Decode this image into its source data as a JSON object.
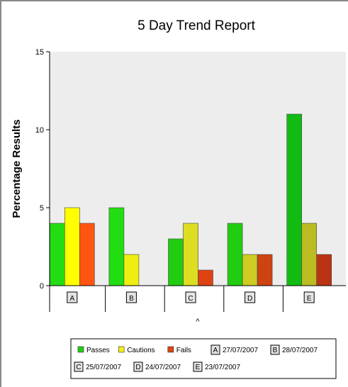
{
  "chart_data": {
    "type": "bar",
    "title": "5 Day Trend Report",
    "ylabel": "Percentage Results",
    "xlabel": "^",
    "ylim": [
      0,
      15
    ],
    "yticks": [
      0,
      5,
      10,
      15
    ],
    "grid": false,
    "legend_position": "bottom",
    "categories": [
      "A",
      "B",
      "C",
      "D",
      "E"
    ],
    "series": [
      {
        "name": "Passes",
        "values": [
          4,
          5,
          3,
          4,
          11
        ]
      },
      {
        "name": "Cautions",
        "values": [
          5,
          2,
          4,
          2,
          4
        ]
      },
      {
        "name": "Fails",
        "values": [
          4,
          0,
          1,
          2,
          2
        ]
      }
    ],
    "category_colors": [
      {
        "passes": "#22dd11",
        "cautions": "#ffff00",
        "fails": "#ff5511"
      },
      {
        "passes": "#22dd11",
        "cautions": "#eeee11",
        "fails": "#ee5511"
      },
      {
        "passes": "#22cc11",
        "cautions": "#dddd22",
        "fails": "#dd4411"
      },
      {
        "passes": "#22cc11",
        "cautions": "#cccc22",
        "fails": "#cc4411"
      },
      {
        "passes": "#11bb11",
        "cautions": "#bbbb22",
        "fails": "#bb3311"
      }
    ],
    "legend_series_colors": {
      "Passes": "#22cc11",
      "Cautions": "#eeee22",
      "Fails": "#dd4411"
    },
    "category_legend": [
      {
        "key": "A",
        "label": "27/07/2007"
      },
      {
        "key": "B",
        "label": "28/07/2007"
      },
      {
        "key": "C",
        "label": "25/07/2007"
      },
      {
        "key": "D",
        "label": "24/07/2007"
      },
      {
        "key": "E",
        "label": "23/07/2007"
      }
    ],
    "plot_background": "#ededed"
  }
}
